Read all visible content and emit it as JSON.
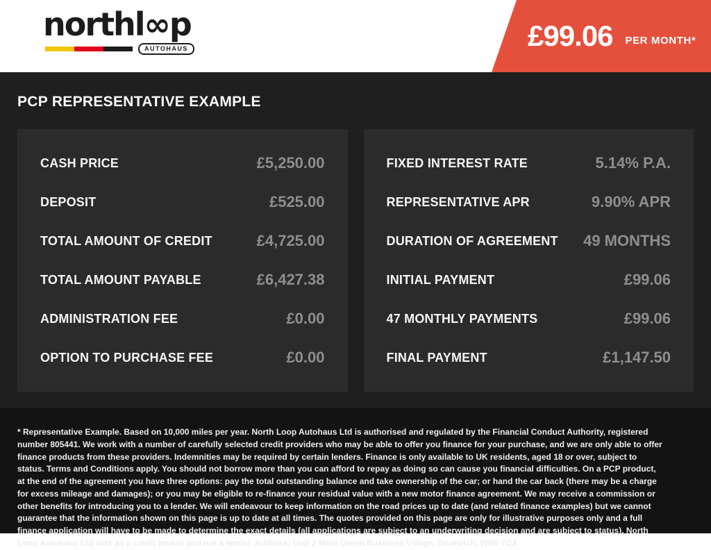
{
  "header": {
    "logo": {
      "wordmark": "northl∞p",
      "tagline": "AUTOHAUS"
    },
    "price_banner": {
      "amount": "£99.06",
      "period": "PER MONTH*"
    }
  },
  "main": {
    "title": "PCP REPRESENTATIVE EXAMPLE"
  },
  "panels": {
    "left": {
      "rows": [
        {
          "label": "CASH PRICE",
          "value": "£5,250.00"
        },
        {
          "label": "DEPOSIT",
          "value": "£525.00"
        },
        {
          "label": "TOTAL AMOUNT OF CREDIT",
          "value": "£4,725.00"
        },
        {
          "label": "TOTAL AMOUNT PAYABLE",
          "value": "£6,427.38"
        },
        {
          "label": "ADMINISTRATION FEE",
          "value": "£0.00"
        },
        {
          "label": "OPTION TO PURCHASE FEE",
          "value": "£0.00"
        }
      ]
    },
    "right": {
      "rows": [
        {
          "label": "FIXED INTEREST RATE",
          "value": "5.14% P.A."
        },
        {
          "label": "REPRESENTATIVE APR",
          "value": "9.90% APR"
        },
        {
          "label": "DURATION OF AGREEMENT",
          "value": "49 MONTHS"
        },
        {
          "label": "INITIAL PAYMENT",
          "value": "£99.06"
        },
        {
          "label": "47 MONTHLY PAYMENTS",
          "value": "£99.06"
        },
        {
          "label": "FINAL PAYMENT",
          "value": "£1,147.50"
        }
      ]
    }
  },
  "footer": {
    "disclaimer": "* Representative Example. Based on 10,000 miles per year. North Loop Autohaus Ltd is authorised and regulated by the Financial Conduct Authority, registered number 805441. We work with a number of carefully selected credit providers who may be able to offer you finance for your purchase, and we are only able to offer finance products from these providers. Indemnities may be required by certain lenders. Finance is only available to UK residents, aged 18 or over, subject to status. Terms and Conditions apply. You should not borrow more than you can afford to repay as doing so can cause you financial difficulties. On a PCP product, at the end of the agreement you have three options: pay the total outstanding balance and take ownership of the car; or hand the car back (there may be a charge for excess mileage and damages); or you may be eligible to re-finance your residual value with a new motor finance agreement. We may receive a commission or other benefits for introducing you to a lender. We will endeavour to keep information on the road prices up to date (and related finance examples) but we cannot guarantee that the information shown on this page is up to date at all times. The quotes provided on this page are only for illustrative purposes only and a full finance application will have to be made to determine the exact details (all applications are subject to an underwriting decision and are subject to status). North Loop Autohaus Ltd acts as a credit broker and not a lender. Address: Unit 2 Mere Green Business Village, Droitwich, WR9 7GA"
  },
  "colors": {
    "banner_red": "#E5503C",
    "stripe_yellow": "#F2C500",
    "stripe_red": "#E2001A",
    "stripe_black": "#1C1C1C",
    "main_bg": "#1F1F1F",
    "panel_bg": "#2B2B2B",
    "footer_bg": "#131313",
    "value_gray": "#8E8E8E"
  }
}
